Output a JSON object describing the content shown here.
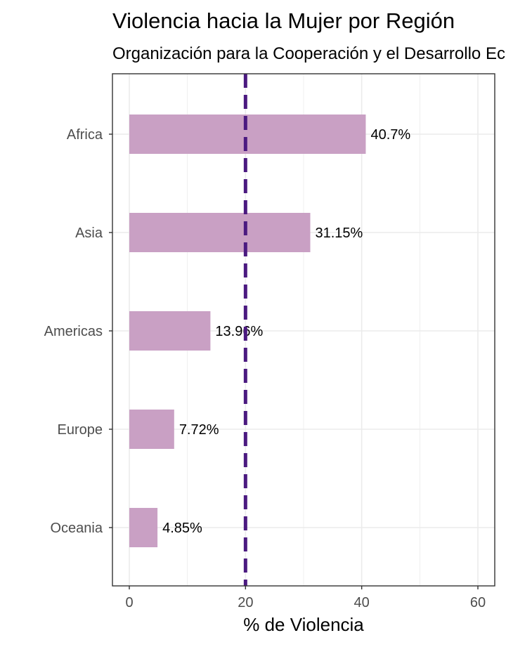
{
  "chart_data": {
    "type": "bar",
    "orientation": "horizontal",
    "title": "Violencia hacia la Mujer por Región",
    "subtitle": "Organización para la Cooperación y el Desarrollo Económicos",
    "xlabel": "% de Violencia",
    "ylabel": "",
    "categories": [
      "Africa",
      "Asia",
      "Americas",
      "Europe",
      "Oceania"
    ],
    "values": [
      40.7,
      31.15,
      13.96,
      7.72,
      4.85
    ],
    "data_labels": [
      "40.7%",
      "31.15%",
      "13.96%",
      "7.72%",
      "4.85%"
    ],
    "xlim": [
      0,
      62.5
    ],
    "x_ticks": [
      0,
      20,
      40,
      60
    ],
    "reference_line": {
      "value": 20,
      "style": "dashed",
      "color": "#4b1a80"
    },
    "grid": true,
    "legend": "none",
    "colors": {
      "bar": "#c9a0c4",
      "panel_border": "#333333",
      "grid": "#ebebeb"
    }
  }
}
